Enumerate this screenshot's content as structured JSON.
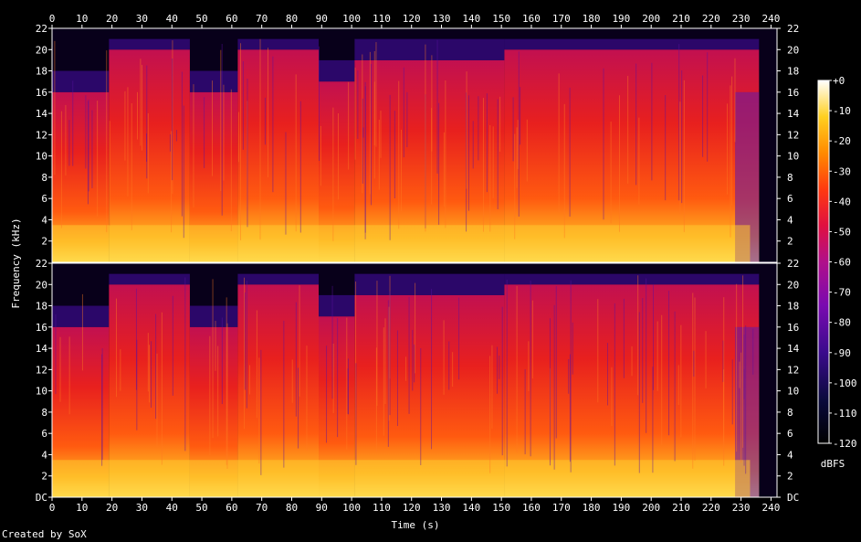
{
  "chart_data": {
    "type": "heatmap",
    "title": "",
    "xlabel": "Time (s)",
    "ylabel": "Frequency (kHz)",
    "x_ticks": [
      0,
      10,
      20,
      30,
      40,
      50,
      60,
      70,
      80,
      90,
      100,
      110,
      120,
      130,
      140,
      150,
      160,
      170,
      180,
      190,
      200,
      210,
      220,
      230,
      240
    ],
    "y_ticks_upper": [
      "22",
      "20",
      "18",
      "16",
      "14",
      "12",
      "10",
      "8",
      "6",
      "4",
      "2"
    ],
    "y_ticks_lower": [
      "22",
      "20",
      "18",
      "16",
      "14",
      "12",
      "10",
      "8",
      "6",
      "4",
      "2",
      "DC"
    ],
    "xlim": [
      0,
      242
    ],
    "ylim_khz": [
      0,
      22
    ],
    "channels": 2,
    "colorbar": {
      "label": "dBFS",
      "ticks": [
        "+0",
        "-10",
        "-20",
        "-30",
        "-40",
        "-50",
        "-60",
        "-70",
        "-80",
        "-90",
        "-100",
        "-110",
        "-120"
      ],
      "range": [
        -120,
        0
      ]
    },
    "segments": [
      {
        "start": 0,
        "end": 19,
        "cutoff_khz": 16
      },
      {
        "start": 19,
        "end": 46,
        "cutoff_khz": 20
      },
      {
        "start": 46,
        "end": 62,
        "cutoff_khz": 16
      },
      {
        "start": 62,
        "end": 89,
        "cutoff_khz": 20
      },
      {
        "start": 89,
        "end": 101,
        "cutoff_khz": 17
      },
      {
        "start": 101,
        "end": 151,
        "cutoff_khz": 19
      },
      {
        "start": 151,
        "end": 236,
        "cutoff_khz": 20
      },
      {
        "start": 236,
        "end": 242,
        "cutoff_khz": 0
      }
    ],
    "colors": {
      "background": "#000000",
      "frame": "#ffffff"
    }
  },
  "footer": "Created by SoX"
}
